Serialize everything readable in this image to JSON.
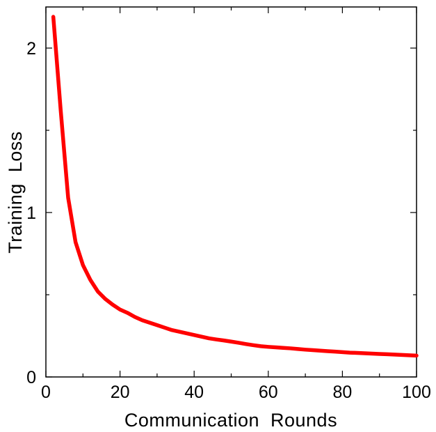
{
  "chart_data": {
    "type": "line",
    "title": "",
    "xlabel": "Communication  Rounds",
    "ylabel": "Training  Loss",
    "xlim": [
      0,
      100
    ],
    "ylim": [
      0,
      2.25
    ],
    "x_ticks": [
      0,
      20,
      40,
      60,
      80,
      100
    ],
    "x_tick_labels": [
      "0",
      "20",
      "40",
      "60",
      "80",
      "100"
    ],
    "x_minor_ticks": [
      10,
      30,
      50,
      70,
      90
    ],
    "y_ticks": [
      0,
      1,
      2
    ],
    "y_tick_labels": [
      "0",
      "1",
      "2"
    ],
    "y_minor_ticks": [
      0.5,
      1.5
    ],
    "grid": false,
    "legend": "none",
    "series": [
      {
        "color": "#ff0000",
        "x": [
          2,
          4,
          6,
          8,
          10,
          12,
          14,
          16,
          18,
          20,
          22,
          24,
          26,
          28,
          30,
          32,
          34,
          36,
          38,
          40,
          42,
          44,
          46,
          48,
          50,
          52,
          54,
          56,
          58,
          60,
          62,
          64,
          66,
          68,
          70,
          72,
          74,
          76,
          78,
          80,
          82,
          84,
          86,
          88,
          90,
          92,
          94,
          96,
          98,
          100
        ],
        "y": [
          2.19,
          1.62,
          1.09,
          0.82,
          0.68,
          0.59,
          0.52,
          0.475,
          0.44,
          0.41,
          0.39,
          0.365,
          0.345,
          0.33,
          0.315,
          0.3,
          0.285,
          0.275,
          0.265,
          0.255,
          0.245,
          0.235,
          0.228,
          0.222,
          0.215,
          0.208,
          0.2,
          0.193,
          0.187,
          0.183,
          0.18,
          0.177,
          0.174,
          0.17,
          0.166,
          0.163,
          0.16,
          0.157,
          0.154,
          0.151,
          0.148,
          0.146,
          0.144,
          0.142,
          0.14,
          0.138,
          0.136,
          0.134,
          0.132,
          0.13
        ]
      }
    ]
  }
}
